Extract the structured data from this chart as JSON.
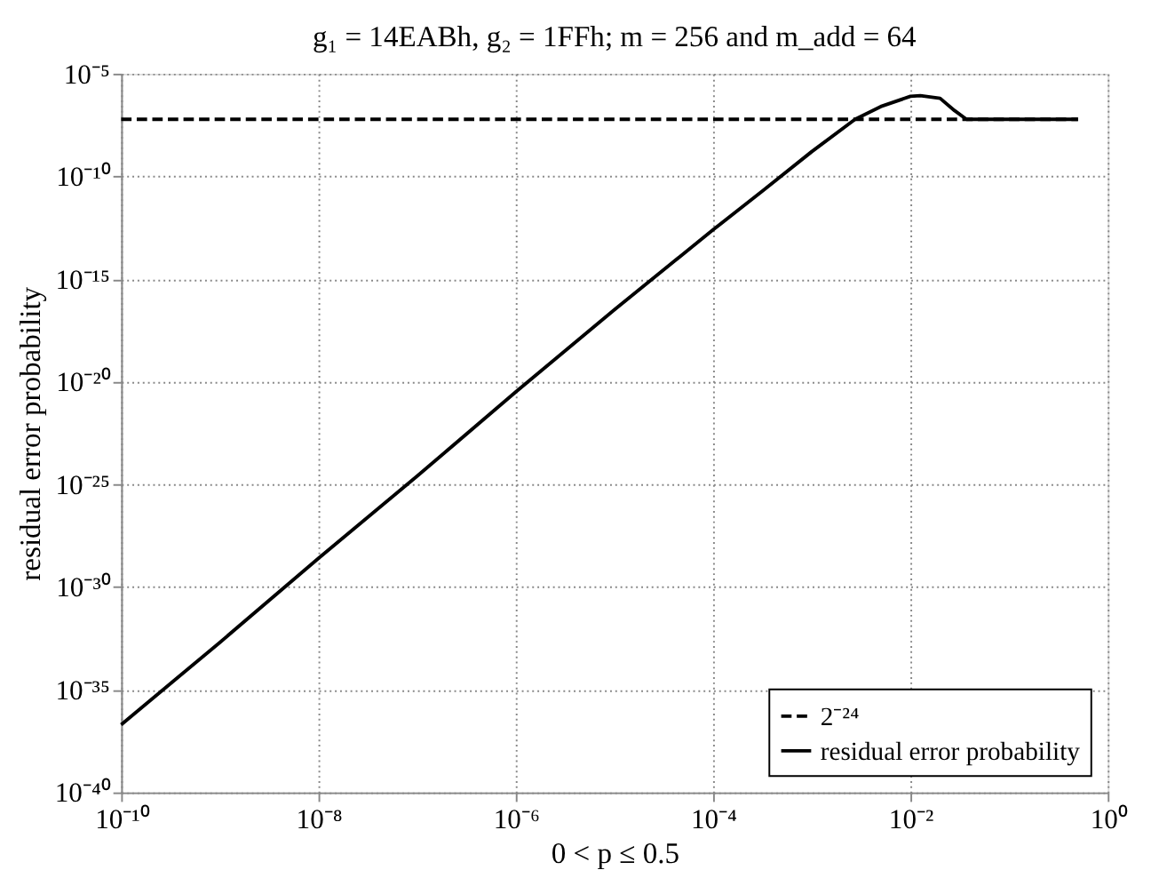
{
  "chart_data": {
    "type": "line",
    "title": "g₁ = 14EABh,  g₂ = 1FFh;  m = 256 and  m_add = 64",
    "xlabel": "0 <  p ≤ 0.5",
    "ylabel": "residual error probability",
    "log": "xy",
    "grid": true,
    "legend": "bottom right",
    "marker": "none",
    "xlim": [
      1e-10,
      1
    ],
    "ylim": [
      1e-40,
      1e-05
    ],
    "xticks": [
      {
        "value": 1e-10,
        "label": "10⁻¹⁰"
      },
      {
        "value": 1e-08,
        "label": "10⁻⁸"
      },
      {
        "value": 1e-06,
        "label": "10⁻⁶"
      },
      {
        "value": 0.0001,
        "label": "10⁻⁴"
      },
      {
        "value": 0.01,
        "label": "10⁻²"
      },
      {
        "value": 1,
        "label": "10⁰"
      }
    ],
    "yticks": [
      {
        "value": 1e-40,
        "label": "10⁻⁴⁰"
      },
      {
        "value": 1e-35,
        "label": "10⁻³⁵"
      },
      {
        "value": 1e-30,
        "label": "10⁻³⁰"
      },
      {
        "value": 1e-25,
        "label": "10⁻²⁵"
      },
      {
        "value": 1e-20,
        "label": "10⁻²⁰"
      },
      {
        "value": 1e-15,
        "label": "10⁻¹⁵"
      },
      {
        "value": 1e-10,
        "label": "10⁻¹⁰"
      },
      {
        "value": 1e-05,
        "label": "10⁻⁵"
      }
    ],
    "series": [
      {
        "name": "2⁻²⁴",
        "color": "#000000",
        "line_style": "dashed",
        "x": [
          1e-10,
          0.5
        ],
        "values": [
          6e-08,
          6e-08
        ]
      },
      {
        "name": "residual error probability",
        "color": "#000000",
        "line_style": "solid",
        "x": [
          1e-10,
          1e-09,
          1e-08,
          1e-07,
          1e-06,
          1e-05,
          0.0001,
          0.00032,
          0.001,
          0.00275,
          0.005,
          0.01,
          0.0126,
          0.02,
          0.028,
          0.037,
          0.5
        ],
        "values": [
          2e-37,
          2e-33,
          2.5e-29,
          2.5e-25,
          3.2e-21,
          3.2e-17,
          2.5e-13,
          2e-11,
          1.6e-09,
          6e-08,
          2.5e-07,
          7.9e-07,
          8.5e-07,
          6.3e-07,
          1.6e-07,
          6e-08,
          6e-08
        ]
      }
    ]
  }
}
